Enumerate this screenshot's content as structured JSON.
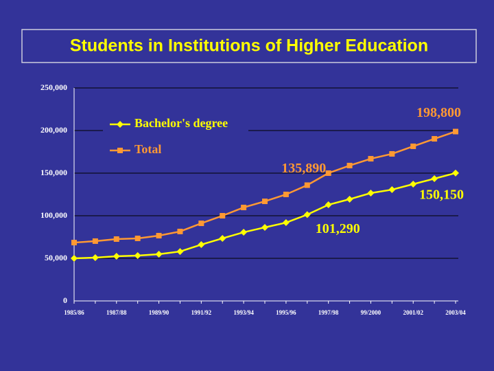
{
  "chart_data": {
    "type": "line",
    "title": "Students in Institutions of Higher Education",
    "categories": [
      "1985/86",
      null,
      "1987/88",
      null,
      "1989/90",
      null,
      "1991/92",
      null,
      "1993/94",
      null,
      "1995/96",
      null,
      "1997/98",
      null,
      "99/2000",
      null,
      "2001/02",
      null,
      "2003/04"
    ],
    "series": [
      {
        "name": "Bachelor's degree",
        "color": "#ffff00",
        "values": [
          50000,
          50800,
          52400,
          53200,
          54800,
          58000,
          66100,
          73400,
          80600,
          86300,
          91900,
          101290,
          112900,
          119400,
          126600,
          130600,
          137100,
          143500,
          150150
        ],
        "value_labels": [
          null,
          null,
          null,
          null,
          null,
          null,
          null,
          null,
          null,
          null,
          null,
          "101,290",
          null,
          null,
          null,
          null,
          null,
          null,
          "150,150"
        ]
      },
      {
        "name": "Total",
        "color": "#ff9933",
        "values": [
          68500,
          70200,
          72600,
          73400,
          76600,
          81500,
          91100,
          100000,
          109700,
          116900,
          125000,
          135890,
          150000,
          158900,
          166900,
          172600,
          181500,
          190300,
          198800
        ],
        "value_labels": [
          null,
          null,
          null,
          null,
          null,
          null,
          null,
          null,
          null,
          null,
          null,
          "135,890",
          null,
          null,
          null,
          null,
          null,
          null,
          "198,800"
        ]
      }
    ],
    "ylim": [
      0,
      250000
    ],
    "yticks": [
      0,
      {
        "value": 50000,
        "label": "50,000"
      },
      {
        "value": 100000,
        "label": "100,000"
      },
      {
        "value": 150000,
        "label": "150,000"
      },
      {
        "value": 200000,
        "label": "200,000"
      },
      {
        "value": 250000,
        "label": "250,000"
      }
    ],
    "grid": true
  }
}
